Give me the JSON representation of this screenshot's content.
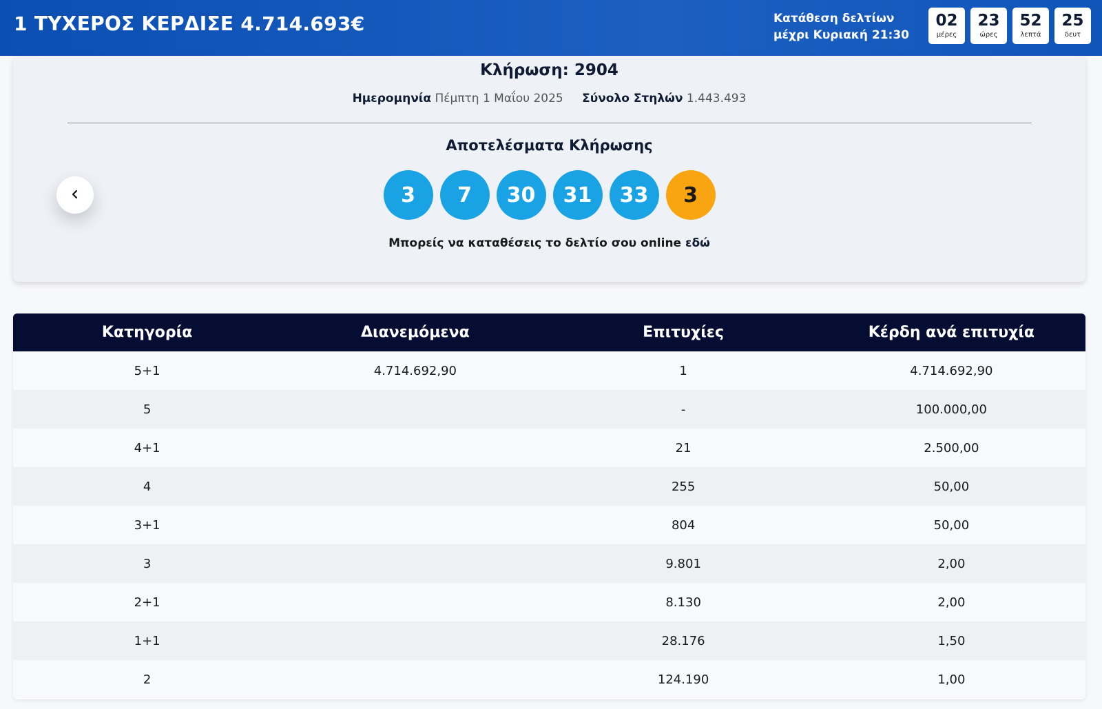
{
  "header": {
    "jackpot_text": "1 ΤΥΧΕΡΟΣ ΚΕΡΔΙΣΕ 4.714.693€",
    "deadline_line1": "Κατάθεση δελτίων",
    "deadline_line2": "μέχρι Κυριακή 21:30",
    "countdown": [
      {
        "value": "02",
        "label": "μέρες"
      },
      {
        "value": "23",
        "label": "ώρες"
      },
      {
        "value": "52",
        "label": "λεπτά"
      },
      {
        "value": "25",
        "label": "δευτ"
      }
    ]
  },
  "draw": {
    "title": "Κλήρωση: 2904",
    "date_label": "Ημερομηνία",
    "date_value": "Πέμπτη 1 Μαΐου 2025",
    "columns_label": "Σύνολο Στηλών",
    "columns_value": "1.443.493",
    "results_title": "Αποτελέσματα Κλήρωσης",
    "numbers": [
      "3",
      "7",
      "30",
      "31",
      "33"
    ],
    "joker": "3",
    "online_text": "Μπορείς να καταθέσεις το δελτίο σου online",
    "online_link": "εδώ",
    "prev_icon": "chevron-left-icon"
  },
  "colors": {
    "header_bg": "#1c5fc1",
    "ball_main": "#19a3e4",
    "ball_joker": "#f9a511",
    "table_header_bg": "#060d33"
  },
  "table": {
    "headers": [
      "Κατηγορία",
      "Διανεμόμενα",
      "Επιτυχίες",
      "Κέρδη ανά επιτυχία"
    ],
    "rows": [
      [
        "5+1",
        "4.714.692,90",
        "1",
        "4.714.692,90"
      ],
      [
        "5",
        "",
        "-",
        "100.000,00"
      ],
      [
        "4+1",
        "",
        "21",
        "2.500,00"
      ],
      [
        "4",
        "",
        "255",
        "50,00"
      ],
      [
        "3+1",
        "",
        "804",
        "50,00"
      ],
      [
        "3",
        "",
        "9.801",
        "2,00"
      ],
      [
        "2+1",
        "",
        "8.130",
        "2,00"
      ],
      [
        "1+1",
        "",
        "28.176",
        "1,50"
      ],
      [
        "2",
        "",
        "124.190",
        "1,00"
      ]
    ]
  }
}
